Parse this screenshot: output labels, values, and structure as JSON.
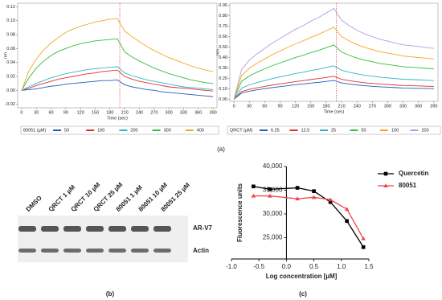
{
  "chart_data": [
    {
      "type": "line",
      "y_label": "nm",
      "x_label": "Time (sec)",
      "legend_title": "80051 (µM)",
      "xlim": [
        -8,
        398
      ],
      "ylim": [
        -0.025,
        0.125
      ],
      "xticks": [
        0,
        30,
        60,
        90,
        120,
        150,
        180,
        210,
        240,
        270,
        300,
        330,
        360,
        390
      ],
      "yticks": [
        -0.02,
        {
          "value": 0,
          "label": "0.00"
        },
        0.02,
        0.04,
        0.06,
        0.08,
        {
          "value": 0.1,
          "label": "0.10"
        },
        0.12
      ],
      "vline": 200,
      "vline_color": "#e03030",
      "x": [
        0,
        15,
        30,
        45,
        60,
        75,
        90,
        105,
        120,
        135,
        150,
        165,
        180,
        195,
        210,
        225,
        240,
        255,
        270,
        285,
        300,
        315,
        330,
        345,
        360,
        375,
        390
      ],
      "series": [
        {
          "name": "50",
          "color": "#1f5fbf",
          "values": [
            0,
            0.001,
            0.002,
            0.004,
            0.006,
            0.007,
            0.009,
            0.01,
            0.011,
            0.012,
            0.013,
            0.014,
            0.014,
            0.015,
            0.008,
            0.005,
            0.003,
            0.001,
            0,
            -0.002,
            -0.003,
            -0.004,
            -0.005,
            -0.006,
            -0.007,
            -0.008,
            -0.009
          ]
        },
        {
          "name": "100",
          "color": "#e0302a",
          "values": [
            0,
            0.003,
            0.007,
            0.01,
            0.013,
            0.016,
            0.018,
            0.02,
            0.022,
            0.024,
            0.025,
            0.027,
            0.028,
            0.029,
            0.02,
            0.016,
            0.013,
            0.011,
            0.009,
            0.007,
            0.005,
            0.004,
            0.003,
            0.002,
            0.001,
            0,
            -0.001
          ]
        },
        {
          "name": "200",
          "color": "#2fb5c8",
          "values": [
            0,
            0.005,
            0.01,
            0.014,
            0.018,
            0.021,
            0.024,
            0.026,
            0.028,
            0.03,
            0.031,
            0.032,
            0.033,
            0.034,
            0.025,
            0.021,
            0.018,
            0.015,
            0.013,
            0.011,
            0.009,
            0.007,
            0.005,
            0.004,
            0.003,
            0.002,
            0.001
          ]
        },
        {
          "name": "300",
          "color": "#2fbf3a",
          "values": [
            0,
            0.018,
            0.032,
            0.042,
            0.05,
            0.056,
            0.06,
            0.064,
            0.067,
            0.069,
            0.071,
            0.072,
            0.073,
            0.074,
            0.055,
            0.048,
            0.042,
            0.037,
            0.032,
            0.028,
            0.024,
            0.021,
            0.018,
            0.015,
            0.013,
            0.011,
            0.01
          ]
        },
        {
          "name": "400",
          "color": "#f5a623",
          "values": [
            0,
            0.028,
            0.045,
            0.058,
            0.068,
            0.076,
            0.083,
            0.088,
            0.092,
            0.095,
            0.098,
            0.1,
            0.102,
            0.103,
            0.085,
            0.077,
            0.07,
            0.063,
            0.057,
            0.052,
            0.047,
            0.043,
            0.039,
            0.035,
            0.032,
            0.029,
            0.027
          ]
        }
      ]
    },
    {
      "type": "line",
      "y_label": "nm",
      "x_label": "Time (sec)",
      "legend_title": "QRCT (µM)",
      "xlim": [
        -8,
        398
      ],
      "ylim": [
        -0.02,
        0.92
      ],
      "xticks": [
        0,
        30,
        60,
        90,
        120,
        150,
        180,
        210,
        240,
        270,
        300,
        330,
        360,
        390
      ],
      "yticks": [
        {
          "value": 0,
          "label": "0.00"
        },
        {
          "value": 0.1,
          "label": "0.10"
        },
        {
          "value": 0.2,
          "label": "0.20"
        },
        {
          "value": 0.3,
          "label": "0.30"
        },
        {
          "value": 0.4,
          "label": "0.40"
        },
        {
          "value": 0.5,
          "label": "0.50"
        },
        {
          "value": 0.6,
          "label": "0.60"
        },
        {
          "value": 0.7,
          "label": "0.70"
        },
        {
          "value": 0.8,
          "label": "0.80"
        },
        {
          "value": 0.9,
          "label": "0.90"
        }
      ],
      "vline": 200,
      "vline_color": "#e03030",
      "x": [
        0,
        15,
        30,
        45,
        60,
        75,
        90,
        105,
        120,
        135,
        150,
        165,
        180,
        195,
        210,
        225,
        240,
        255,
        270,
        285,
        300,
        315,
        330,
        345,
        360,
        375,
        390
      ],
      "series": [
        {
          "name": "6.25",
          "color": "#1f5fbf",
          "values": [
            0,
            0.059,
            0.077,
            0.09,
            0.101,
            0.112,
            0.121,
            0.13,
            0.139,
            0.146,
            0.155,
            0.162,
            0.171,
            0.18,
            0.157,
            0.146,
            0.137,
            0.13,
            0.124,
            0.119,
            0.115,
            0.112,
            0.108,
            0.106,
            0.104,
            0.103,
            0.101
          ]
        },
        {
          "name": "12.5",
          "color": "#e0302a",
          "values": [
            0,
            0.073,
            0.095,
            0.11,
            0.123,
            0.136,
            0.147,
            0.158,
            0.169,
            0.178,
            0.189,
            0.198,
            0.209,
            0.22,
            0.191,
            0.178,
            0.167,
            0.158,
            0.152,
            0.145,
            0.141,
            0.136,
            0.132,
            0.13,
            0.128,
            0.125,
            0.123
          ]
        },
        {
          "name": "25",
          "color": "#2fb5c8",
          "values": [
            0,
            0.106,
            0.138,
            0.16,
            0.179,
            0.198,
            0.214,
            0.23,
            0.246,
            0.259,
            0.275,
            0.288,
            0.304,
            0.32,
            0.278,
            0.259,
            0.243,
            0.23,
            0.221,
            0.211,
            0.205,
            0.198,
            0.192,
            0.189,
            0.186,
            0.182,
            0.179
          ]
        },
        {
          "name": "50",
          "color": "#2fbf3a",
          "values": [
            0,
            0.172,
            0.224,
            0.26,
            0.291,
            0.322,
            0.348,
            0.374,
            0.4,
            0.421,
            0.447,
            0.468,
            0.494,
            0.52,
            0.452,
            0.421,
            0.395,
            0.374,
            0.359,
            0.343,
            0.333,
            0.322,
            0.312,
            0.307,
            0.302,
            0.296,
            0.291
          ]
        },
        {
          "name": "100",
          "color": "#f5a623",
          "values": [
            0,
            0.228,
            0.297,
            0.345,
            0.386,
            0.428,
            0.462,
            0.497,
            0.531,
            0.559,
            0.593,
            0.621,
            0.656,
            0.69,
            0.6,
            0.559,
            0.524,
            0.497,
            0.476,
            0.455,
            0.442,
            0.428,
            0.414,
            0.407,
            0.4,
            0.393,
            0.386
          ]
        },
        {
          "name": "200",
          "color": "#b59ce6",
          "values": [
            0,
            0.287,
            0.374,
            0.435,
            0.487,
            0.539,
            0.583,
            0.626,
            0.67,
            0.705,
            0.748,
            0.783,
            0.827,
            0.87,
            0.757,
            0.705,
            0.661,
            0.626,
            0.6,
            0.574,
            0.557,
            0.539,
            0.522,
            0.513,
            0.505,
            0.496,
            0.487
          ]
        }
      ]
    },
    {
      "type": "scatter",
      "y_label": "Fluorescence units",
      "x_label": "Log concentration [µM]",
      "xlim": [
        -1,
        1.5
      ],
      "ylim": [
        20500,
        40000
      ],
      "xticks": [
        {
          "value": -1,
          "label": "-1.0"
        },
        -0.5,
        {
          "value": 0,
          "label": "0.0"
        },
        0.5,
        {
          "value": 1,
          "label": "1.0"
        },
        1.5
      ],
      "yticks": [
        {
          "value": 25000,
          "label": "25,000"
        },
        {
          "value": 30000,
          "label": "30,000"
        },
        {
          "value": 35000,
          "label": "35,000"
        },
        {
          "value": 40000,
          "label": "40,000"
        }
      ],
      "x": [
        -0.6,
        -0.3,
        0.2,
        0.5,
        0.8,
        1.1,
        1.4
      ],
      "series": [
        {
          "name": "Quercetin",
          "color": "#000000",
          "marker": "square",
          "values": [
            35800,
            35200,
            35500,
            34800,
            32500,
            28500,
            23000
          ]
        },
        {
          "name": "80051",
          "color": "#f0444a",
          "marker": "triangle",
          "values": [
            33800,
            33800,
            33200,
            33500,
            33000,
            31000,
            24800
          ]
        }
      ]
    }
  ],
  "blot": {
    "lanes": [
      "DMSO",
      "QRCT 1 µM",
      "QRCT 10 µM",
      "QRCT 25 µM",
      "80051 1 µM",
      "80051 10 µM",
      "80051 25 µM"
    ],
    "bands": [
      "AR-V7",
      "Actin"
    ]
  },
  "panel_labels": {
    "a": "(a)",
    "b": "(b)",
    "c": "(c)"
  }
}
